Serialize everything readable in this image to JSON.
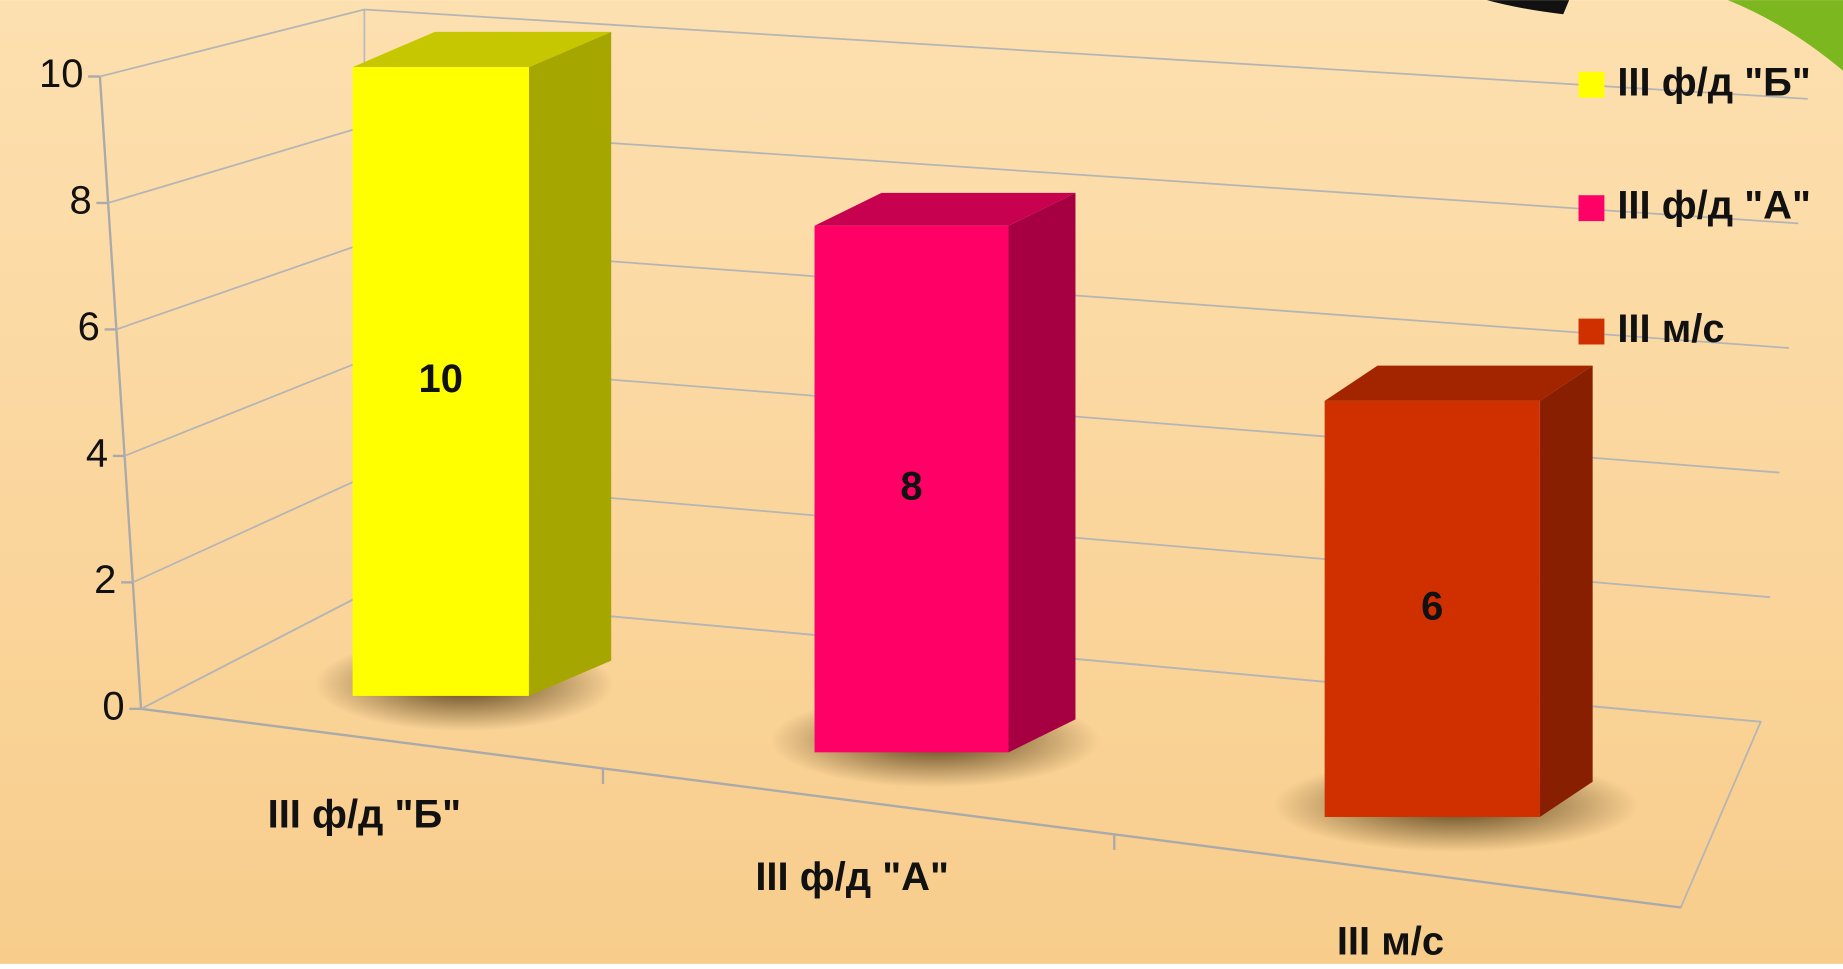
{
  "chart_data": {
    "type": "bar3d",
    "categories": [
      "III  ф/д \"Б\"",
      "III  ф/д \"А\"",
      "III м/с"
    ],
    "values": [
      10,
      8,
      6
    ],
    "colors": [
      "#ffff00",
      "#ff0066",
      "#d03000"
    ],
    "ylim": [
      0,
      10
    ],
    "yticks": [
      0,
      2,
      4,
      6,
      8,
      10
    ],
    "grid": true,
    "legend": "right"
  }
}
